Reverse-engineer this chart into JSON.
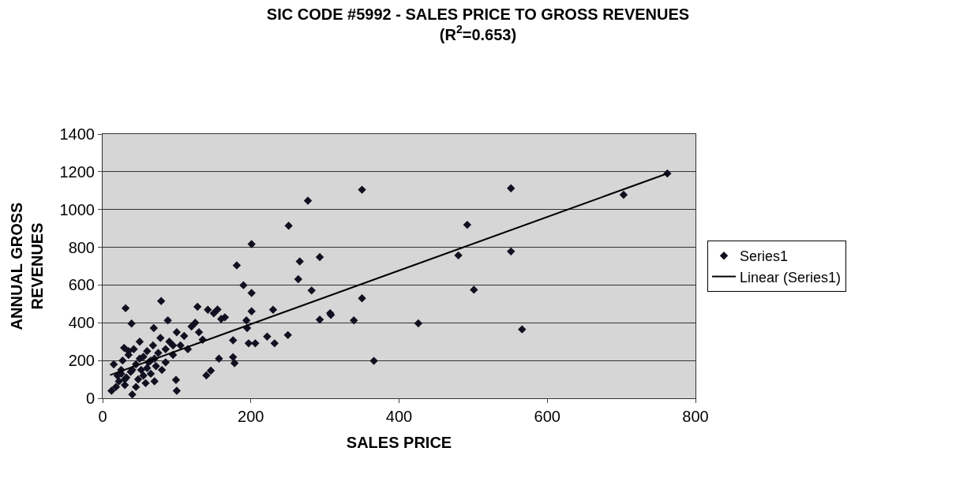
{
  "chart_data": {
    "type": "scatter",
    "title": "SIC CODE #5992 - SALES PRICE TO GROSS REVENUES",
    "subtitle": "(R$^{2}$=0.653)",
    "xlabel": "SALES PRICE",
    "ylabel": "ANNUAL GROSS REVENUES",
    "xlim": [
      0,
      800
    ],
    "xticks": [
      0,
      200,
      400,
      600,
      800
    ],
    "ylim": [
      0,
      1400
    ],
    "yticks": [
      0,
      200,
      400,
      600,
      800,
      1000,
      1200,
      1400
    ],
    "grid": "y",
    "legend": "right",
    "marker": "diamond",
    "series": [
      {
        "name": "Series1",
        "color": "#101020",
        "x": [
          277,
          251,
          201,
          181,
          266,
          293,
          264,
          190,
          201,
          282,
          31,
          79,
          39,
          128,
          142,
          165,
          201,
          230,
          293,
          308,
          194,
          195,
          222,
          250,
          232,
          197,
          206,
          176,
          176,
          178,
          157,
          140,
          146,
          99,
          100,
          88,
          69,
          29,
          762,
          703,
          551,
          350,
          492,
          480,
          551,
          501,
          350,
          307,
          339,
          426,
          566,
          366,
          12,
          15,
          18,
          20,
          22,
          25,
          27,
          30,
          32,
          35,
          38,
          40,
          42,
          45,
          48,
          50,
          52,
          55,
          58,
          60,
          62,
          65,
          68,
          70,
          72,
          75,
          78,
          80,
          85,
          90,
          95,
          100,
          105,
          110,
          115,
          120,
          125,
          130,
          135,
          150,
          155,
          160,
          45,
          55,
          60,
          35,
          25,
          50,
          70,
          85,
          95,
          40,
          30,
          65
        ],
        "values": [
          1047,
          914,
          817,
          704,
          725,
          748,
          631,
          599,
          558,
          571,
          477,
          515,
          396,
          485,
          469,
          429,
          461,
          469,
          417,
          442,
          413,
          372,
          327,
          335,
          291,
          291,
          291,
          307,
          218,
          186,
          210,
          121,
          146,
          97,
          40,
          413,
          372,
          267,
          1191,
          1078,
          1113,
          1105,
          919,
          757,
          778,
          575,
          530,
          451,
          413,
          397,
          365,
          198,
          40,
          180,
          60,
          120,
          90,
          150,
          200,
          70,
          110,
          230,
          140,
          20,
          260,
          180,
          100,
          300,
          150,
          220,
          80,
          250,
          190,
          130,
          280,
          210,
          170,
          240,
          320,
          150,
          260,
          300,
          230,
          350,
          280,
          330,
          260,
          380,
          400,
          350,
          310,
          450,
          470,
          420,
          60,
          120,
          160,
          250,
          130,
          210,
          90,
          190,
          280,
          150,
          100,
          200
        ]
      },
      {
        "name": "Linear (Series1)",
        "type": "line",
        "color": "#000000",
        "marker": "none",
        "x": [
          10,
          762
        ],
        "values": [
          123,
          1191
        ]
      }
    ]
  }
}
